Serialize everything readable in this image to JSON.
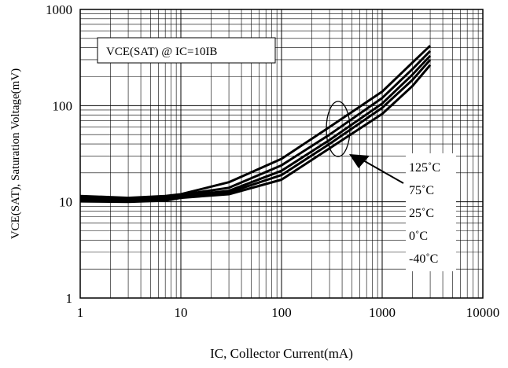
{
  "chart_data": {
    "type": "line",
    "title": "",
    "xlabel": "IC, Collector Current(mA)",
    "ylabel": "VCE(SAT), Saturation Voltage(mV)",
    "x_scale": "log",
    "y_scale": "log",
    "xlim": [
      1,
      10000
    ],
    "ylim": [
      1,
      1000
    ],
    "x_ticks": [
      "1",
      "10",
      "100",
      "1000",
      "10000"
    ],
    "y_ticks": [
      "1",
      "10",
      "100",
      "1000"
    ],
    "grid": true,
    "annotation": "VCE(SAT) @ IC=10IB",
    "legend_position": "right-inside, pointer arrow toward curve bundle",
    "series": [
      {
        "name": "125˚C",
        "x": [
          1,
          3,
          7,
          10,
          30,
          100,
          300,
          1000,
          2000,
          3000
        ],
        "y": [
          11.5,
          11,
          11.5,
          12,
          16,
          28,
          60,
          140,
          280,
          420
        ]
      },
      {
        "name": "75˚C",
        "x": [
          1,
          3,
          7,
          10,
          30,
          100,
          300,
          1000,
          2000,
          3000
        ],
        "y": [
          11,
          10.8,
          11.2,
          11.8,
          14,
          24,
          50,
          120,
          240,
          370
        ]
      },
      {
        "name": "25˚C",
        "x": [
          1,
          3,
          7,
          10,
          30,
          100,
          300,
          1000,
          2000,
          3000
        ],
        "y": [
          10.7,
          10.5,
          11,
          11.5,
          13,
          21,
          44,
          105,
          210,
          330
        ]
      },
      {
        "name": "0˚C",
        "x": [
          1,
          3,
          7,
          10,
          30,
          100,
          300,
          1000,
          2000,
          3000
        ],
        "y": [
          10.4,
          10.2,
          10.6,
          11.2,
          12.5,
          19,
          40,
          95,
          185,
          300
        ]
      },
      {
        "name": "-40˚C",
        "x": [
          1,
          3,
          7,
          10,
          30,
          100,
          300,
          1000,
          2000,
          3000
        ],
        "y": [
          10.1,
          10,
          10.3,
          11,
          12,
          17,
          36,
          82,
          160,
          265
        ]
      }
    ],
    "colors": {
      "line": "#000000",
      "grid": "#000000",
      "background": "#ffffff"
    }
  }
}
